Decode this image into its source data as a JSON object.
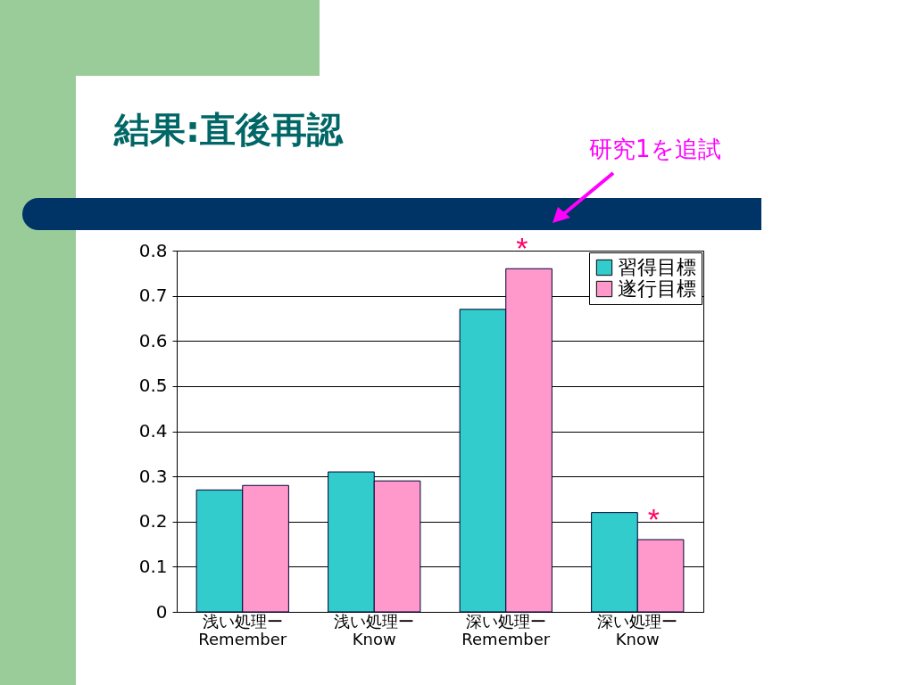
{
  "chart_data": {
    "type": "bar",
    "title": "結果:直後再認",
    "categories": [
      "浅い処理ー\nRemember",
      "浅い処理ー\nKnow",
      "深い処理ー\nRemember",
      "深い処理ー\nKnow"
    ],
    "series": [
      {
        "name": "習得目標",
        "color": "#33cccc",
        "values": [
          0.27,
          0.31,
          0.67,
          0.22
        ]
      },
      {
        "name": "遂行目標",
        "color": "#ff99cc",
        "values": [
          0.28,
          0.29,
          0.76,
          0.16
        ]
      }
    ],
    "ylim": [
      0,
      0.8
    ],
    "yticks": [
      0,
      0.1,
      0.2,
      0.3,
      0.4,
      0.5,
      0.6,
      0.7,
      0.8
    ],
    "grid": "y",
    "legend": "top right",
    "annotations": [
      "研究1を追試",
      {
        "text": "*",
        "x": "深い処理ー\nRemember",
        "y": 0.76
      },
      {
        "text": "*",
        "x": "深い処理ー\nKnow",
        "y": 0.16
      }
    ]
  }
}
